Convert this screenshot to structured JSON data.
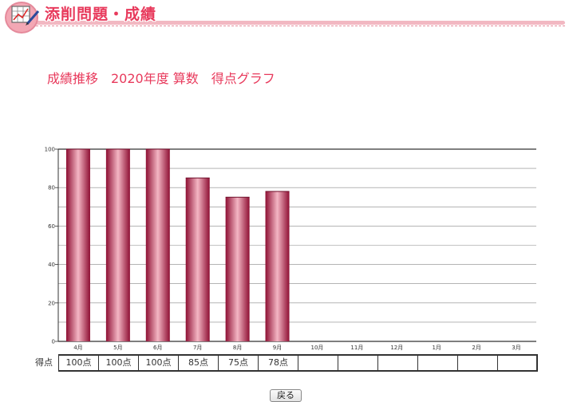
{
  "header": {
    "title": "添削問題・成績",
    "icon": "chart-pencil-icon",
    "accent": "#e83a5c"
  },
  "page_title": "成績推移　2020年度 算数　得点グラフ",
  "chart_data": {
    "type": "bar",
    "categories": [
      "4月",
      "5月",
      "6月",
      "7月",
      "8月",
      "9月",
      "10月",
      "11月",
      "12月",
      "1月",
      "2月",
      "3月"
    ],
    "values": [
      100,
      100,
      100,
      85,
      75,
      78,
      null,
      null,
      null,
      null,
      null,
      null
    ],
    "ylim": [
      0,
      100
    ],
    "yticks": [
      0,
      20,
      40,
      60,
      80,
      100
    ],
    "grid": true,
    "bar_color": "#b0193f"
  },
  "score_row": {
    "label": "得点",
    "cells": [
      "100点",
      "100点",
      "100点",
      "85点",
      "75点",
      "78点",
      "",
      "",
      "",
      "",
      "",
      ""
    ]
  },
  "back_button": {
    "label": "戻る"
  }
}
